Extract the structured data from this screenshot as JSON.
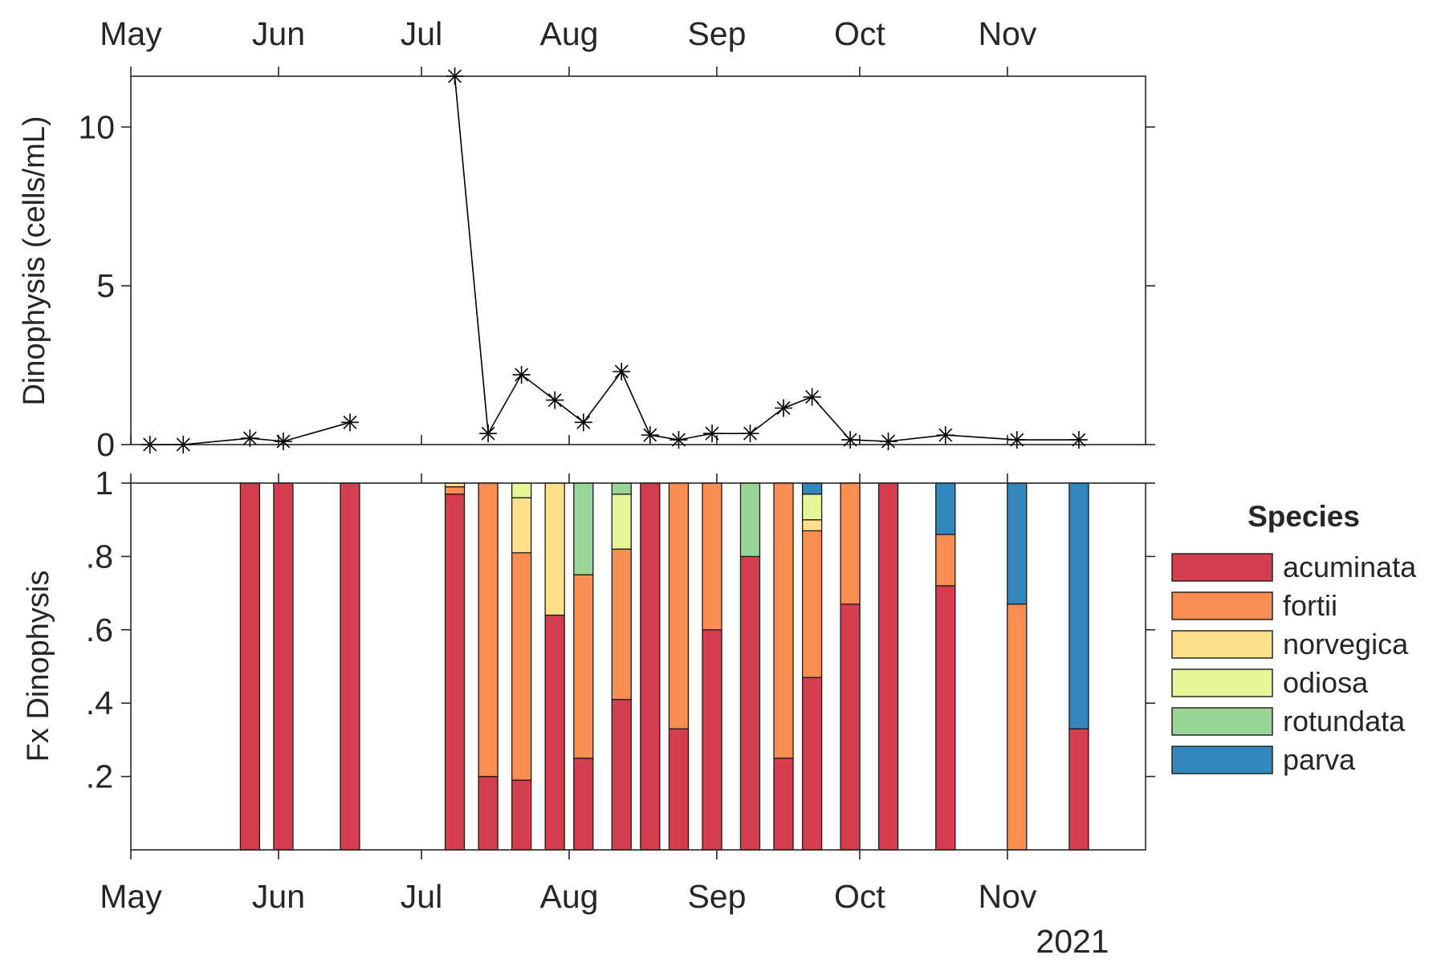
{
  "chart_data": [
    {
      "type": "line",
      "ylabel": "Dinophysis (cells/mL)",
      "ylim": [
        0,
        11.6
      ],
      "yticks": [
        0,
        5,
        10
      ],
      "ytick_labels": [
        "0",
        "5",
        "10"
      ],
      "xlim": [
        "2021-05-01",
        "2021-11-30"
      ],
      "month_ticks": [
        "2021-05-01",
        "2021-06-01",
        "2021-07-01",
        "2021-08-01",
        "2021-09-01",
        "2021-10-01",
        "2021-11-01"
      ],
      "month_labels": [
        "May",
        "Jun",
        "Jul",
        "Aug",
        "Sep",
        "Oct",
        "Nov"
      ],
      "marker": "asterisk",
      "line_color": "#000000",
      "segments": [
        [
          {
            "x": "2021-05-05",
            "y": 0.0
          },
          {
            "x": "2021-05-12",
            "y": 0.0
          },
          {
            "x": "2021-05-26",
            "y": 0.2
          },
          {
            "x": "2021-06-02",
            "y": 0.1
          },
          {
            "x": "2021-06-16",
            "y": 0.7
          }
        ],
        [
          {
            "x": "2021-07-08",
            "y": 11.6
          },
          {
            "x": "2021-07-15",
            "y": 0.35
          },
          {
            "x": "2021-07-22",
            "y": 2.2
          },
          {
            "x": "2021-07-29",
            "y": 1.4
          },
          {
            "x": "2021-08-04",
            "y": 0.7
          },
          {
            "x": "2021-08-12",
            "y": 2.3
          },
          {
            "x": "2021-08-18",
            "y": 0.3
          },
          {
            "x": "2021-08-24",
            "y": 0.15
          },
          {
            "x": "2021-08-31",
            "y": 0.35
          },
          {
            "x": "2021-09-08",
            "y": 0.35
          },
          {
            "x": "2021-09-15",
            "y": 1.15
          },
          {
            "x": "2021-09-21",
            "y": 1.5
          },
          {
            "x": "2021-09-29",
            "y": 0.15
          },
          {
            "x": "2021-10-07",
            "y": 0.1
          },
          {
            "x": "2021-10-19",
            "y": 0.3
          },
          {
            "x": "2021-11-03",
            "y": 0.15
          },
          {
            "x": "2021-11-16",
            "y": 0.15
          }
        ]
      ]
    },
    {
      "type": "bar",
      "stacked": true,
      "ylabel": "Fx Dinophysis",
      "ylim": [
        0,
        1
      ],
      "yticks": [
        0.2,
        0.4,
        0.6,
        0.8,
        1
      ],
      "ytick_labels": [
        ".2",
        ".4",
        ".6",
        ".8",
        "1"
      ],
      "xlim": [
        "2021-05-01",
        "2021-11-30"
      ],
      "month_ticks": [
        "2021-05-01",
        "2021-06-01",
        "2021-07-01",
        "2021-08-01",
        "2021-09-01",
        "2021-10-01",
        "2021-11-01"
      ],
      "month_labels": [
        "May",
        "Jun",
        "Jul",
        "Aug",
        "Sep",
        "Oct",
        "Nov"
      ],
      "year_label": "2021",
      "legend": {
        "title": "Species",
        "placement": "right",
        "entries": [
          "acuminata",
          "fortii",
          "norvegica",
          "odiosa",
          "rotundata",
          "parva"
        ]
      },
      "series_colors": {
        "acuminata": "#d53e4f",
        "fortii": "#f98e52",
        "norvegica": "#fee08b",
        "odiosa": "#e6f598",
        "rotundata": "#99d594",
        "parva": "#3288bd"
      },
      "bars": [
        {
          "x": "2021-05-26",
          "acuminata": 1.0,
          "fortii": 0,
          "norvegica": 0,
          "odiosa": 0,
          "rotundata": 0,
          "parva": 0
        },
        {
          "x": "2021-06-02",
          "acuminata": 1.0,
          "fortii": 0,
          "norvegica": 0,
          "odiosa": 0,
          "rotundata": 0,
          "parva": 0
        },
        {
          "x": "2021-06-16",
          "acuminata": 1.0,
          "fortii": 0,
          "norvegica": 0,
          "odiosa": 0,
          "rotundata": 0,
          "parva": 0
        },
        {
          "x": "2021-07-08",
          "acuminata": 0.97,
          "fortii": 0.02,
          "norvegica": 0.01,
          "odiosa": 0,
          "rotundata": 0,
          "parva": 0
        },
        {
          "x": "2021-07-15",
          "acuminata": 0.2,
          "fortii": 0.8,
          "norvegica": 0,
          "odiosa": 0,
          "rotundata": 0,
          "parva": 0
        },
        {
          "x": "2021-07-22",
          "acuminata": 0.19,
          "fortii": 0.62,
          "norvegica": 0.15,
          "odiosa": 0.04,
          "rotundata": 0,
          "parva": 0
        },
        {
          "x": "2021-07-29",
          "acuminata": 0.64,
          "fortii": 0,
          "norvegica": 0.36,
          "odiosa": 0,
          "rotundata": 0,
          "parva": 0
        },
        {
          "x": "2021-08-04",
          "acuminata": 0.25,
          "fortii": 0.5,
          "norvegica": 0,
          "odiosa": 0,
          "rotundata": 0.25,
          "parva": 0
        },
        {
          "x": "2021-08-12",
          "acuminata": 0.41,
          "fortii": 0.41,
          "norvegica": 0,
          "odiosa": 0.15,
          "rotundata": 0.03,
          "parva": 0
        },
        {
          "x": "2021-08-18",
          "acuminata": 1.0,
          "fortii": 0,
          "norvegica": 0,
          "odiosa": 0,
          "rotundata": 0,
          "parva": 0
        },
        {
          "x": "2021-08-24",
          "acuminata": 0.33,
          "fortii": 0.67,
          "norvegica": 0,
          "odiosa": 0,
          "rotundata": 0,
          "parva": 0
        },
        {
          "x": "2021-08-31",
          "acuminata": 0.6,
          "fortii": 0.4,
          "norvegica": 0,
          "odiosa": 0,
          "rotundata": 0,
          "parva": 0
        },
        {
          "x": "2021-09-08",
          "acuminata": 0.8,
          "fortii": 0,
          "norvegica": 0,
          "odiosa": 0,
          "rotundata": 0.2,
          "parva": 0
        },
        {
          "x": "2021-09-15",
          "acuminata": 0.25,
          "fortii": 0.75,
          "norvegica": 0,
          "odiosa": 0,
          "rotundata": 0,
          "parva": 0
        },
        {
          "x": "2021-09-21",
          "acuminata": 0.47,
          "fortii": 0.4,
          "norvegica": 0.03,
          "odiosa": 0.07,
          "rotundata": 0,
          "parva": 0.03
        },
        {
          "x": "2021-09-29",
          "acuminata": 0.67,
          "fortii": 0.33,
          "norvegica": 0,
          "odiosa": 0,
          "rotundata": 0,
          "parva": 0
        },
        {
          "x": "2021-10-07",
          "acuminata": 1.0,
          "fortii": 0,
          "norvegica": 0,
          "odiosa": 0,
          "rotundata": 0,
          "parva": 0
        },
        {
          "x": "2021-10-19",
          "acuminata": 0.72,
          "fortii": 0.14,
          "norvegica": 0,
          "odiosa": 0,
          "rotundata": 0,
          "parva": 0.14
        },
        {
          "x": "2021-11-03",
          "acuminata": 0,
          "fortii": 0.67,
          "norvegica": 0,
          "odiosa": 0,
          "rotundata": 0,
          "parva": 0.33
        },
        {
          "x": "2021-11-16",
          "acuminata": 0.33,
          "fortii": 0,
          "norvegica": 0,
          "odiosa": 0,
          "rotundata": 0,
          "parva": 0.67
        }
      ]
    }
  ]
}
